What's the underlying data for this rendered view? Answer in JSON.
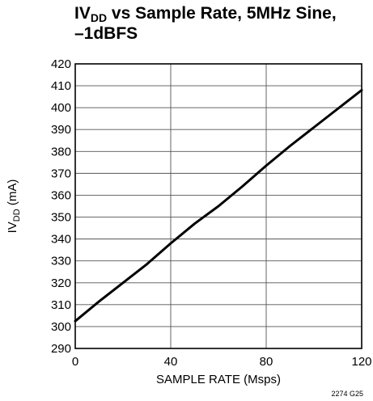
{
  "chart_data": {
    "type": "line",
    "title_prefix": "IV",
    "title_sub": "DD",
    "title_line1_rest": " vs Sample Rate, 5MHz Sine,",
    "title_line2": "–1dBFS",
    "xlabel": "SAMPLE RATE (Msps)",
    "ylabel_prefix": "IV",
    "ylabel_sub": "DD",
    "ylabel_suffix": " (mA)",
    "xlim": [
      0,
      120
    ],
    "ylim": [
      290,
      420
    ],
    "xticks": [
      0,
      40,
      80,
      120
    ],
    "yticks": [
      290,
      300,
      310,
      320,
      330,
      340,
      350,
      360,
      370,
      380,
      390,
      400,
      410,
      420
    ],
    "grid": true,
    "series": [
      {
        "x": [
          0,
          10,
          20,
          30,
          40,
          50,
          60,
          70,
          80,
          90,
          100,
          110,
          120
        ],
        "y": [
          302.5,
          311.5,
          320,
          328.5,
          338,
          347,
          355,
          364,
          373.5,
          382.5,
          391,
          399.5,
          408
        ]
      }
    ],
    "figure_number": "2274 G25"
  }
}
